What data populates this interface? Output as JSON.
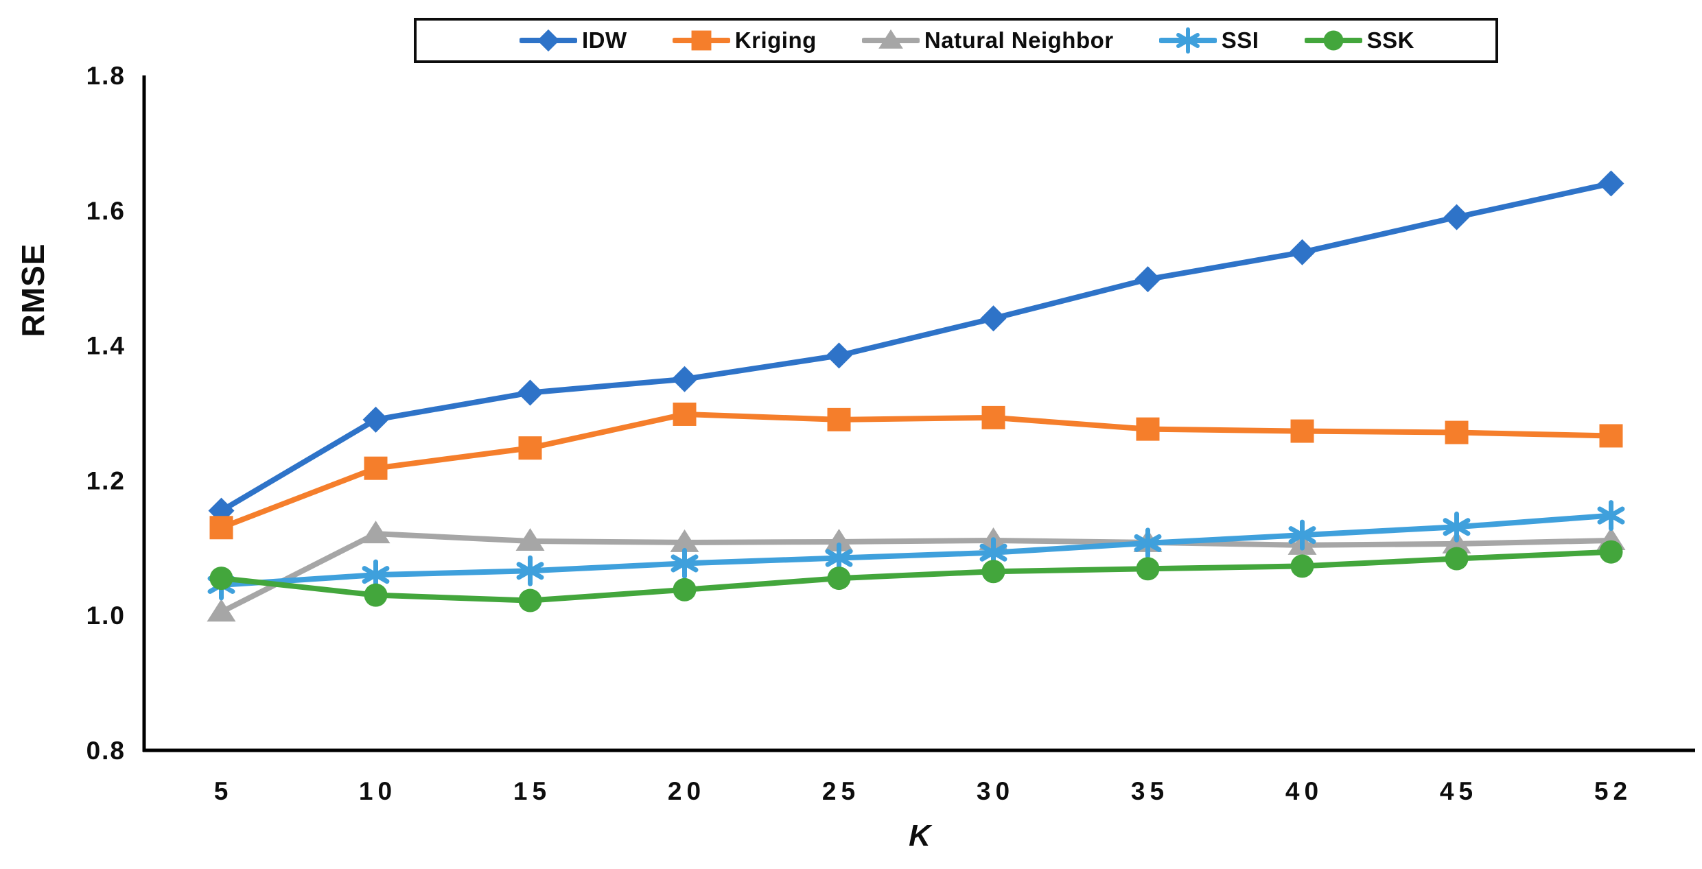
{
  "chart_data": {
    "type": "line",
    "title": "",
    "xlabel": "K",
    "ylabel": "RMSE",
    "x_categories": [
      "5",
      "10",
      "15",
      "20",
      "25",
      "30",
      "35",
      "40",
      "45",
      "52"
    ],
    "ylim": [
      0.8,
      1.8
    ],
    "y_ticks": [
      "0.8",
      "1.0",
      "1.2",
      "1.4",
      "1.6",
      "1.8"
    ],
    "grid": false,
    "legend_position": "top-center",
    "axis_color": "#000000",
    "tick_label_color": "#0d0d0d",
    "series": [
      {
        "name": "IDW",
        "color": "#2E73C8",
        "marker": "diamond",
        "values": [
          1.155,
          1.29,
          1.33,
          1.35,
          1.385,
          1.44,
          1.498,
          1.538,
          1.59,
          1.64
        ]
      },
      {
        "name": "Kriging",
        "color": "#F57E2B",
        "marker": "square",
        "values": [
          1.13,
          1.218,
          1.248,
          1.298,
          1.29,
          1.293,
          1.276,
          1.273,
          1.271,
          1.266
        ]
      },
      {
        "name": "Natural Neighbor",
        "color": "#A6A6A6",
        "marker": "triangle",
        "values": [
          1.005,
          1.121,
          1.11,
          1.108,
          1.109,
          1.111,
          1.108,
          1.104,
          1.106,
          1.111
        ]
      },
      {
        "name": "SSI",
        "color": "#3FA0DC",
        "marker": "asterisk",
        "values": [
          1.045,
          1.06,
          1.066,
          1.077,
          1.085,
          1.093,
          1.107,
          1.119,
          1.131,
          1.148
        ]
      },
      {
        "name": "SSK",
        "color": "#43A63C",
        "marker": "circle",
        "values": [
          1.055,
          1.03,
          1.022,
          1.038,
          1.055,
          1.065,
          1.069,
          1.073,
          1.084,
          1.094
        ]
      }
    ]
  }
}
